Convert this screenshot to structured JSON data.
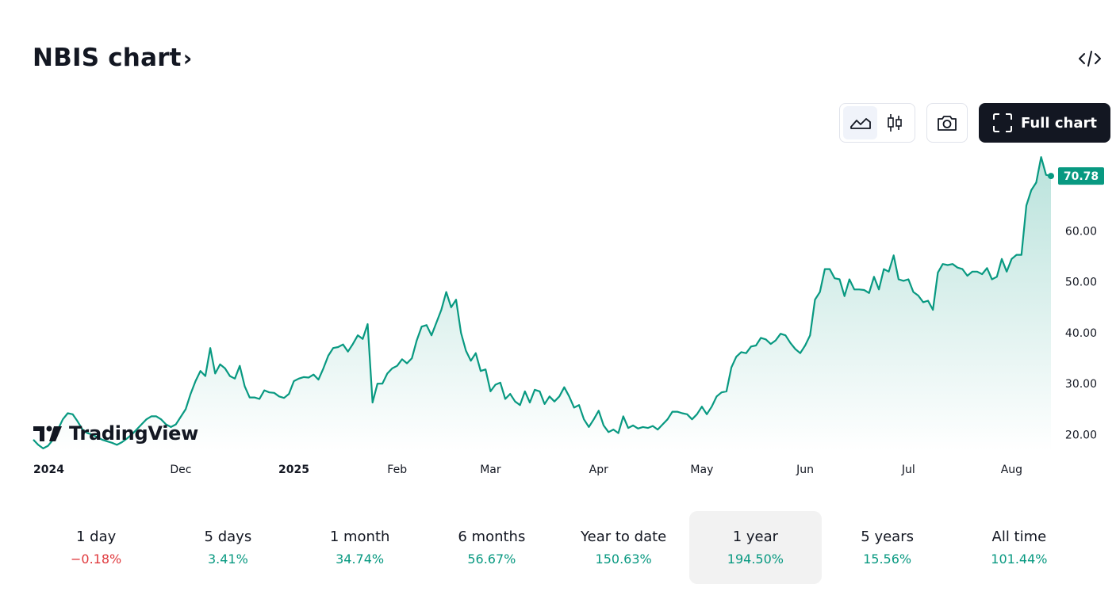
{
  "header": {
    "title": "NBIS chart",
    "title_chevron": "›",
    "embed_icon": "code-embed-icon"
  },
  "toolbar": {
    "area_chart_icon": "area-chart-icon",
    "candles_icon": "candlestick-icon",
    "snapshot_icon": "camera-icon",
    "full_chart_label": "Full chart",
    "full_chart_icon": "fullscreen-icon"
  },
  "branding": {
    "logo_text": "TradingView"
  },
  "colors": {
    "line": "#089981",
    "price_label_bg": "#089981",
    "positive": "#089981",
    "negative": "#e03a3e"
  },
  "chart_data": {
    "type": "area",
    "title": "NBIS chart",
    "y_ticks": [
      "20.00",
      "30.00",
      "40.00",
      "50.00",
      "60.00"
    ],
    "ylim": [
      16.5,
      75
    ],
    "last_price_label": "70.78",
    "x_tick_labels": [
      {
        "label": "2024",
        "index": 0,
        "bold": true
      },
      {
        "label": "Dec",
        "index": 30,
        "bold": false
      },
      {
        "label": "2025",
        "index": 53,
        "bold": true
      },
      {
        "label": "Feb",
        "index": 74,
        "bold": false
      },
      {
        "label": "Mar",
        "index": 93,
        "bold": false
      },
      {
        "label": "Apr",
        "index": 115,
        "bold": false
      },
      {
        "label": "May",
        "index": 136,
        "bold": false
      },
      {
        "label": "Jun",
        "index": 157,
        "bold": false
      },
      {
        "label": "Jul",
        "index": 178,
        "bold": false
      },
      {
        "label": "Aug",
        "index": 199,
        "bold": false
      }
    ],
    "values": [
      19.0,
      18.0,
      17.3,
      17.8,
      19.0,
      21.0,
      23.0,
      24.2,
      24.0,
      22.6,
      21.0,
      20.3,
      20.0,
      19.5,
      19.0,
      18.7,
      18.4,
      18.0,
      18.5,
      19.2,
      20.0,
      21.0,
      22.0,
      23.0,
      23.6,
      23.6,
      23.0,
      22.0,
      21.5,
      22.0,
      23.5,
      25.0,
      28.0,
      30.5,
      32.5,
      31.5,
      37.0,
      32.0,
      33.8,
      33.0,
      31.5,
      31.0,
      33.5,
      29.5,
      27.3,
      27.3,
      27.0,
      28.7,
      28.3,
      28.2,
      27.5,
      27.2,
      28.0,
      30.5,
      31.0,
      31.3,
      31.2,
      31.8,
      30.8,
      33.0,
      35.5,
      37.0,
      37.2,
      37.7,
      36.3,
      37.8,
      39.5,
      38.8,
      41.7,
      26.3,
      30.0,
      30.0,
      32.0,
      33.0,
      33.5,
      34.8,
      34.0,
      35.0,
      38.5,
      41.2,
      41.5,
      39.5,
      42.0,
      44.5,
      48.0,
      45.0,
      46.5,
      40.0,
      36.5,
      34.5,
      36.0,
      32.5,
      32.8,
      28.5,
      29.8,
      30.2,
      27.0,
      28.0,
      26.5,
      25.8,
      28.5,
      26.3,
      28.8,
      28.5,
      26.0,
      27.5,
      26.5,
      27.5,
      29.3,
      27.5,
      25.3,
      25.8,
      23.0,
      21.5,
      23.0,
      24.7,
      21.8,
      20.5,
      21.0,
      20.3,
      23.6,
      21.3,
      21.8,
      21.2,
      21.5,
      21.3,
      21.7,
      21.0,
      22.0,
      23.0,
      24.5,
      24.5,
      24.2,
      24.0,
      23.0,
      24.0,
      25.5,
      24.0,
      25.5,
      27.5,
      28.3,
      28.5,
      33.2,
      35.3,
      36.2,
      36.0,
      37.3,
      37.5,
      39.0,
      38.7,
      37.8,
      38.5,
      39.8,
      39.5,
      38.0,
      36.8,
      36.0,
      37.5,
      39.5,
      46.5,
      48.0,
      52.5,
      52.5,
      50.7,
      50.5,
      47.2,
      50.5,
      48.5,
      48.5,
      48.4,
      47.8,
      51.0,
      48.5,
      52.5,
      52.0,
      55.2,
      50.5,
      50.2,
      50.5,
      48.0,
      47.3,
      46.0,
      46.3,
      44.5,
      51.8,
      53.5,
      53.3,
      53.5,
      52.8,
      52.5,
      51.2,
      52.0,
      52.0,
      51.5,
      52.7,
      50.5,
      51.0,
      54.5,
      52.0,
      54.5,
      55.3,
      55.3,
      65.0,
      68.0,
      69.5,
      74.5,
      71.0,
      70.78
    ]
  },
  "periods": [
    {
      "label": "1 day",
      "change": "−0.18%",
      "direction": "down",
      "active": false
    },
    {
      "label": "5 days",
      "change": "3.41%",
      "direction": "up",
      "active": false
    },
    {
      "label": "1 month",
      "change": "34.74%",
      "direction": "up",
      "active": false
    },
    {
      "label": "6 months",
      "change": "56.67%",
      "direction": "up",
      "active": false
    },
    {
      "label": "Year to date",
      "change": "150.63%",
      "direction": "up",
      "active": false
    },
    {
      "label": "1 year",
      "change": "194.50%",
      "direction": "up",
      "active": true
    },
    {
      "label": "5 years",
      "change": "15.56%",
      "direction": "up",
      "active": false
    },
    {
      "label": "All time",
      "change": "101.44%",
      "direction": "up",
      "active": false
    }
  ]
}
